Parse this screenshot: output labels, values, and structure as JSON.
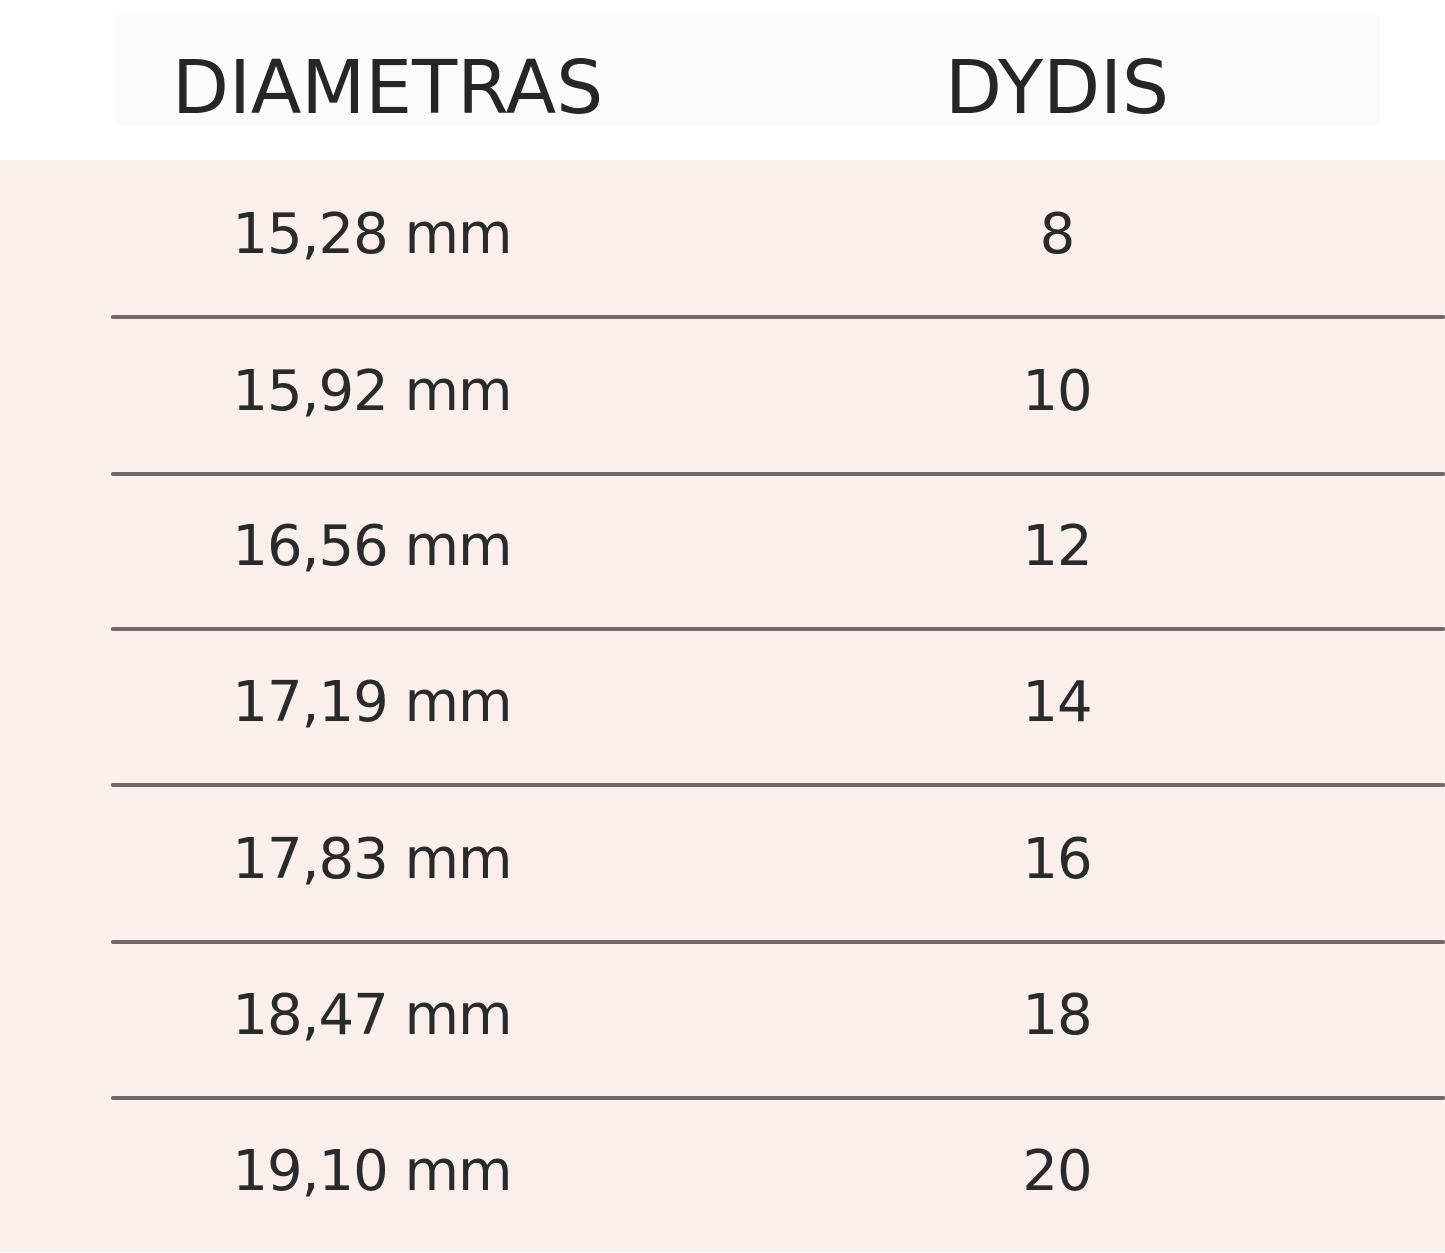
{
  "table": {
    "headers": [
      "DIAMETRAS",
      "DYDIS"
    ],
    "rows": [
      [
        "15,28 mm",
        "8"
      ],
      [
        "15,92 mm",
        "10"
      ],
      [
        "16,56 mm",
        "12"
      ],
      [
        "17,19 mm",
        "14"
      ],
      [
        "17,83 mm",
        "16"
      ],
      [
        "18,47 mm",
        "18"
      ],
      [
        "19,10 mm",
        "20"
      ]
    ]
  },
  "colors": {
    "row_background": "#f9f0ed",
    "divider": "#6e6a6a",
    "text": "#262626"
  }
}
